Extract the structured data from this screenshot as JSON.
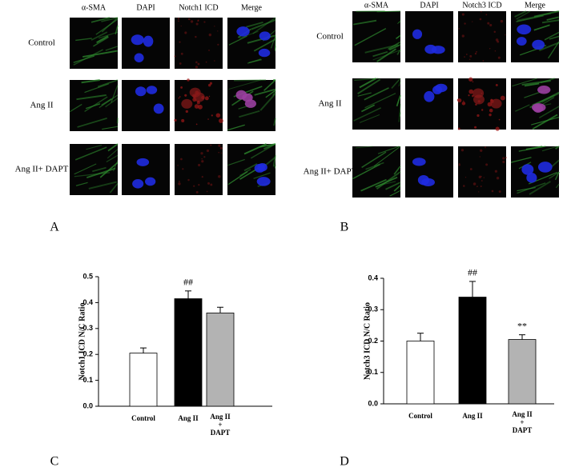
{
  "figure": {
    "panels": [
      {
        "label": "A",
        "columns": [
          "α-SMA",
          "DAPI",
          "Notch1 ICD",
          "Merge"
        ],
        "rows": [
          "Control",
          "Ang II",
          "Ang II+ DAPT"
        ]
      },
      {
        "label": "B",
        "columns": [
          "α-SMA",
          "DAPI",
          "Notch3 ICD",
          "Merge"
        ],
        "rows": [
          "Control",
          "Ang II",
          "Ang II+ DAPT"
        ]
      }
    ]
  },
  "chart_data": [
    {
      "type": "bar",
      "label": "C",
      "y_label": "Notch1 ICD N/C Ratio",
      "categories": [
        "Control",
        "Ang II",
        "Ang II + DAPT"
      ],
      "values": [
        0.205,
        0.415,
        0.36
      ],
      "errors": [
        0.02,
        0.03,
        0.022
      ],
      "colors": [
        "#ffffff",
        "#000000",
        "#b3b3b3"
      ],
      "ylim": [
        0,
        0.5
      ],
      "yticks": [
        {
          "value": 0,
          "label": "0.0"
        },
        0.1,
        0.2,
        0.3,
        0.4,
        0.5
      ],
      "annotations": [
        {
          "category": "Ang II",
          "text": "##"
        }
      ]
    },
    {
      "type": "bar",
      "label": "D",
      "y_label": "Notch3 ICD N/C Ratio",
      "categories": [
        "Control",
        "Ang II",
        "Ang II + DAPT"
      ],
      "values": [
        0.2,
        0.34,
        0.205
      ],
      "errors": [
        0.025,
        0.05,
        0.015
      ],
      "colors": [
        "#ffffff",
        "#000000",
        "#b3b3b3"
      ],
      "ylim": [
        0,
        0.4
      ],
      "yticks": [
        {
          "value": 0,
          "label": "0.0"
        },
        0.1,
        0.2,
        0.3,
        0.4
      ],
      "annotations": [
        {
          "category": "Ang II",
          "text": "##"
        },
        {
          "category": "Ang II + DAPT",
          "text": "**"
        }
      ]
    }
  ]
}
